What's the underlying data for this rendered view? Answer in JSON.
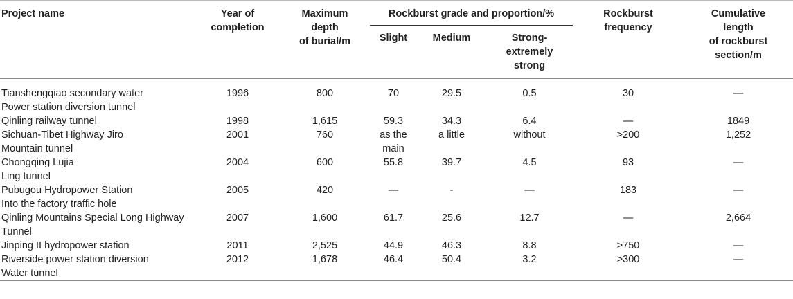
{
  "headers": {
    "project": "Project name",
    "year": [
      "Year of",
      "completion"
    ],
    "depth": [
      "Maximum",
      "depth",
      "of burial/m"
    ],
    "grade": "Rockburst grade and proportion/%",
    "slight": "Slight",
    "medium": "Medium",
    "strong": [
      "Strong-",
      "extremely",
      "strong"
    ],
    "frequency": [
      "Rockburst",
      "frequency"
    ],
    "length": [
      "Cumulative",
      "length",
      "of rockburst",
      "section/m"
    ]
  },
  "rows": [
    {
      "name": [
        "Tianshengqiao secondary water",
        "Power station diversion tunnel"
      ],
      "year": "1996",
      "depth": "800",
      "slight": [
        "70"
      ],
      "medium": [
        "29.5"
      ],
      "strong": "0.5",
      "frequency": "30",
      "length": "—"
    },
    {
      "name": [
        "Qinling railway tunnel"
      ],
      "year": "1998",
      "depth": "1,615",
      "slight": [
        "59.3"
      ],
      "medium": [
        "34.3"
      ],
      "strong": "6.4",
      "frequency": "—",
      "length": "1849"
    },
    {
      "name": [
        "Sichuan-Tibet Highway Jiro",
        "Mountain tunnel"
      ],
      "year": "2001",
      "depth": "760",
      "slight": [
        "as the",
        "main"
      ],
      "medium": [
        "a little"
      ],
      "strong": "without",
      "frequency": ">200",
      "length": "1,252"
    },
    {
      "name": [
        "Chongqing Lujia",
        "Ling tunnel"
      ],
      "year": "2004",
      "depth": "600",
      "slight": [
        "55.8"
      ],
      "medium": [
        "39.7"
      ],
      "strong": "4.5",
      "frequency": "93",
      "length": "—"
    },
    {
      "name": [
        "Pubugou Hydropower Station",
        "Into the factory traffic hole"
      ],
      "year": "2005",
      "depth": "420",
      "slight": [
        "—"
      ],
      "medium": [
        "-"
      ],
      "strong": "—",
      "frequency": "183",
      "length": "—"
    },
    {
      "name": [
        "Qinling Mountains Special Long Highway",
        "Tunnel"
      ],
      "year": "2007",
      "depth": "1,600",
      "slight": [
        "61.7"
      ],
      "medium": [
        "25.6"
      ],
      "strong": "12.7",
      "frequency": "—",
      "length": "2,664"
    },
    {
      "name": [
        "Jinping II hydropower station"
      ],
      "year": "2011",
      "depth": "2,525",
      "slight": [
        "44.9"
      ],
      "medium": [
        "46.3"
      ],
      "strong": "8.8",
      "frequency": ">750",
      "length": "—"
    },
    {
      "name": [
        "Riverside power station diversion",
        "Water tunnel"
      ],
      "year": "2012",
      "depth": "1,678",
      "slight": [
        "46.4"
      ],
      "medium": [
        "50.4"
      ],
      "strong": "3.2",
      "frequency": ">300",
      "length": "—"
    }
  ]
}
